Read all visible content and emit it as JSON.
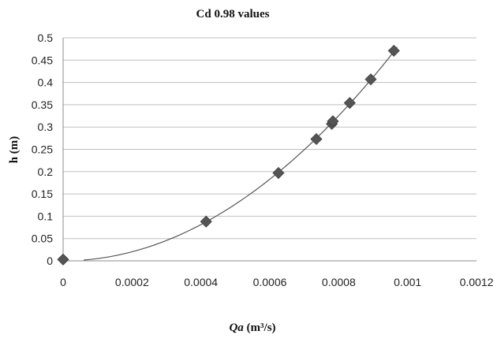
{
  "chart_data": {
    "type": "scatter",
    "title": "Cd 0.98 values",
    "xlabel_var": "Qa",
    "xlabel_unit": " (m³/s)",
    "ylabel": "h (m)",
    "xlim": [
      0,
      0.0012
    ],
    "ylim": [
      0,
      0.5
    ],
    "x_ticks": [
      "0",
      "0.0002",
      "0.0004",
      "0.0006",
      "0.0008",
      "0.001",
      "0.0012"
    ],
    "y_ticks": [
      "0",
      "0.05",
      "0.1",
      "0.15",
      "0.2",
      "0.25",
      "0.3",
      "0.35",
      "0.4",
      "0.45",
      "0.5"
    ],
    "grid": "horizontal",
    "legend": "none",
    "marker": "diamond",
    "marker_color": "#555555",
    "trendline": "power",
    "trendline_color": "#555555",
    "trendline_x_range": [
      6e-05,
      0.00097
    ],
    "series": [
      {
        "x": [
          0,
          0.000415,
          0.000625,
          0.000735,
          0.00078,
          0.000783,
          0.000832,
          0.000893,
          0.00096
        ],
        "y": [
          0.003,
          0.088,
          0.197,
          0.273,
          0.307,
          0.313,
          0.354,
          0.407,
          0.471
        ]
      }
    ]
  }
}
